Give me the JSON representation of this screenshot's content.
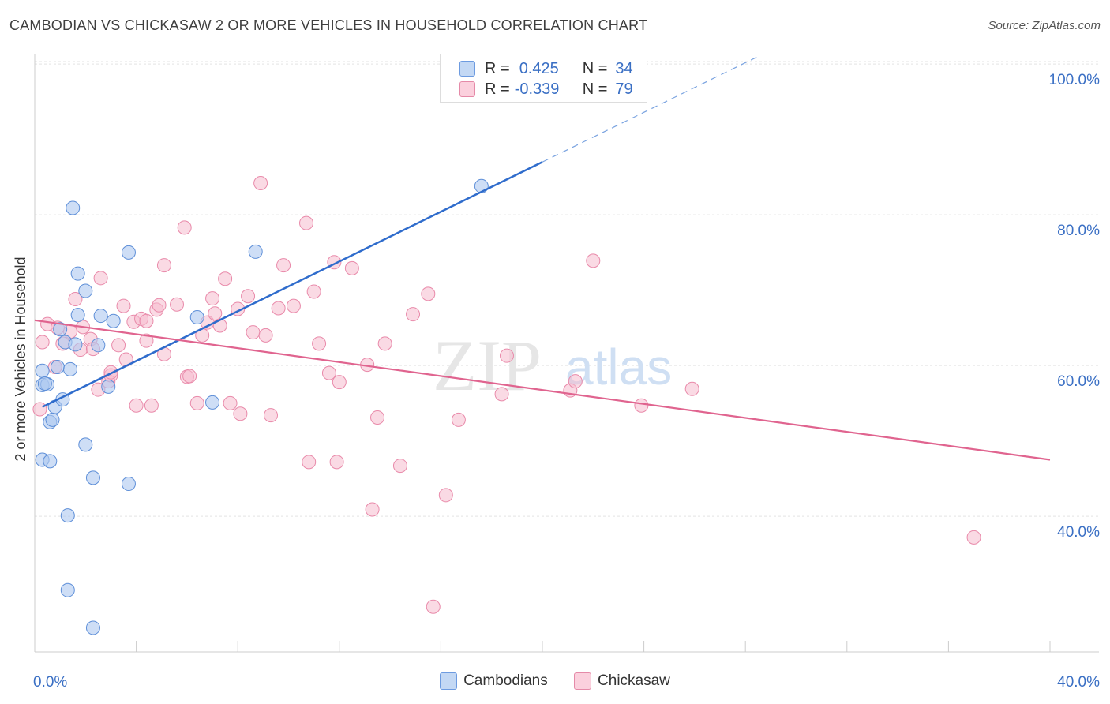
{
  "title": "CAMBODIAN VS CHICKASAW 2 OR MORE VEHICLES IN HOUSEHOLD CORRELATION CHART",
  "source": "Source: ZipAtlas.com",
  "watermark": {
    "zip": "ZIP",
    "atlas": "atlas"
  },
  "stats": [
    {
      "r_label": "R =",
      "r_value": "0.425",
      "n_label": "N =",
      "n_value": "34",
      "color": "#adc8f0"
    },
    {
      "r_label": "R =",
      "r_value": "-0.339",
      "n_label": "N =",
      "n_value": "79",
      "color": "#f6bccd"
    }
  ],
  "legend": [
    {
      "label": "Cambodians",
      "color": "#adc8f0"
    },
    {
      "label": "Chickasaw",
      "color": "#f6bccd"
    }
  ],
  "chart_data": {
    "type": "scatter",
    "ylabel": "2 or more Vehicles in Household",
    "xlim": [
      0,
      40
    ],
    "ylim": [
      22,
      102
    ],
    "x_tick_labels": [
      {
        "value": 0,
        "label": "0.0%"
      },
      {
        "value": 40,
        "label": "40.0%"
      }
    ],
    "y_tick_labels": [
      {
        "value": 40,
        "label": "40.0%"
      },
      {
        "value": 60,
        "label": "60.0%"
      },
      {
        "value": 80,
        "label": "80.0%"
      },
      {
        "value": 100,
        "label": "100.0%"
      }
    ],
    "series": [
      {
        "name": "Cambodians",
        "color": "#5b8fd6",
        "fill": "#adc8f0",
        "trend": {
          "x": [
            0.3,
            20.0
          ],
          "y": [
            54.5,
            87.0
          ],
          "dashed_to": [
            28.5,
            101
          ]
        },
        "points": [
          [
            0.3,
            59.3
          ],
          [
            0.3,
            57.4
          ],
          [
            0.3,
            47.5
          ],
          [
            0.5,
            57.5
          ],
          [
            0.6,
            52.5
          ],
          [
            0.6,
            47.3
          ],
          [
            0.8,
            54.5
          ],
          [
            0.9,
            59.8
          ],
          [
            1.0,
            64.8
          ],
          [
            1.1,
            55.5
          ],
          [
            1.2,
            63.1
          ],
          [
            1.3,
            40.1
          ],
          [
            1.3,
            30.2
          ],
          [
            1.4,
            59.5
          ],
          [
            1.5,
            80.9
          ],
          [
            1.6,
            62.8
          ],
          [
            1.7,
            66.7
          ],
          [
            1.7,
            72.2
          ],
          [
            2.0,
            69.9
          ],
          [
            2.0,
            49.5
          ],
          [
            2.3,
            45.1
          ],
          [
            2.3,
            25.2
          ],
          [
            2.5,
            62.7
          ],
          [
            2.6,
            66.6
          ],
          [
            2.9,
            57.2
          ],
          [
            3.1,
            65.9
          ],
          [
            3.7,
            44.3
          ],
          [
            3.7,
            75.0
          ],
          [
            6.4,
            66.4
          ],
          [
            7.0,
            55.1
          ],
          [
            8.7,
            75.1
          ],
          [
            17.6,
            83.8
          ],
          [
            0.4,
            57.6
          ],
          [
            0.7,
            52.8
          ]
        ]
      },
      {
        "name": "Chickasaw",
        "color": "#e46f98",
        "fill": "#f6bccd",
        "trend": {
          "x": [
            0.0,
            40.0
          ],
          "y": [
            66.0,
            47.5
          ]
        },
        "points": [
          [
            0.2,
            54.2
          ],
          [
            0.3,
            63.1
          ],
          [
            0.5,
            65.5
          ],
          [
            0.8,
            59.8
          ],
          [
            0.9,
            65.0
          ],
          [
            1.1,
            62.9
          ],
          [
            1.4,
            64.5
          ],
          [
            1.6,
            68.8
          ],
          [
            1.8,
            62.1
          ],
          [
            1.9,
            65.1
          ],
          [
            2.2,
            63.5
          ],
          [
            2.3,
            62.2
          ],
          [
            2.5,
            56.8
          ],
          [
            2.6,
            71.6
          ],
          [
            2.9,
            57.9
          ],
          [
            3.0,
            58.7
          ],
          [
            3.3,
            62.7
          ],
          [
            3.5,
            67.9
          ],
          [
            3.6,
            60.8
          ],
          [
            3.9,
            65.8
          ],
          [
            4.0,
            54.7
          ],
          [
            4.2,
            66.2
          ],
          [
            4.4,
            63.3
          ],
          [
            4.6,
            54.7
          ],
          [
            4.8,
            67.4
          ],
          [
            4.9,
            68.0
          ],
          [
            5.1,
            61.5
          ],
          [
            5.1,
            73.3
          ],
          [
            5.6,
            68.1
          ],
          [
            5.9,
            78.3
          ],
          [
            6.0,
            58.5
          ],
          [
            6.1,
            58.6
          ],
          [
            6.4,
            55.0
          ],
          [
            6.6,
            64.0
          ],
          [
            6.8,
            65.7
          ],
          [
            7.0,
            68.9
          ],
          [
            7.1,
            66.9
          ],
          [
            7.3,
            65.3
          ],
          [
            7.5,
            71.5
          ],
          [
            7.7,
            55.0
          ],
          [
            8.0,
            67.5
          ],
          [
            8.1,
            53.6
          ],
          [
            8.4,
            69.2
          ],
          [
            8.6,
            64.4
          ],
          [
            8.9,
            84.2
          ],
          [
            9.1,
            64.0
          ],
          [
            9.3,
            53.4
          ],
          [
            9.6,
            67.6
          ],
          [
            9.8,
            73.3
          ],
          [
            10.2,
            67.9
          ],
          [
            10.7,
            78.9
          ],
          [
            10.8,
            47.2
          ],
          [
            11.0,
            69.8
          ],
          [
            11.2,
            62.9
          ],
          [
            11.6,
            59.0
          ],
          [
            11.8,
            73.7
          ],
          [
            11.9,
            47.2
          ],
          [
            12.0,
            57.8
          ],
          [
            12.5,
            72.9
          ],
          [
            13.1,
            60.1
          ],
          [
            13.3,
            40.9
          ],
          [
            13.5,
            53.1
          ],
          [
            13.8,
            62.9
          ],
          [
            14.4,
            46.7
          ],
          [
            14.9,
            66.8
          ],
          [
            15.5,
            69.5
          ],
          [
            16.2,
            42.8
          ],
          [
            16.7,
            52.8
          ],
          [
            18.4,
            56.2
          ],
          [
            18.6,
            61.3
          ],
          [
            21.1,
            56.7
          ],
          [
            21.3,
            57.9
          ],
          [
            22.0,
            73.9
          ],
          [
            23.9,
            54.7
          ],
          [
            25.9,
            56.9
          ],
          [
            37.0,
            37.2
          ],
          [
            15.7,
            28.0
          ],
          [
            4.4,
            65.9
          ],
          [
            3.0,
            59.1
          ]
        ]
      }
    ]
  }
}
